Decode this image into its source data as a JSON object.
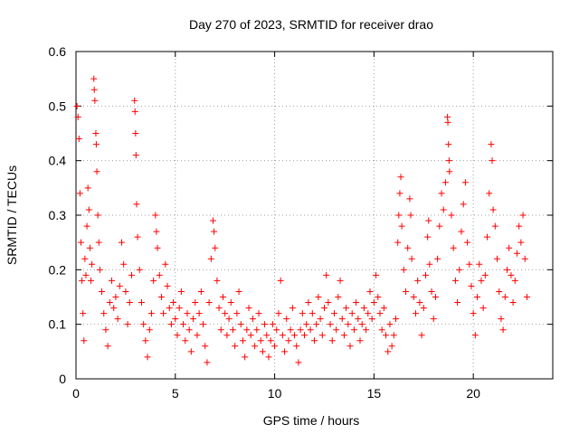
{
  "chart_data": {
    "type": "scatter",
    "title": "Day 270 of 2023, SRMTID for receiver drao",
    "xlabel": "GPS time / hours",
    "ylabel": "SRMTID / TECUs",
    "xlim": [
      0,
      24
    ],
    "ylim": [
      0,
      0.6
    ],
    "x_ticks": [
      0,
      5,
      10,
      15,
      20
    ],
    "y_ticks": [
      0,
      0.1,
      0.2,
      0.3,
      0.4,
      0.5,
      0.6
    ],
    "x_tick_labels": [
      "0",
      "5",
      "10",
      "15",
      "20"
    ],
    "y_tick_labels": [
      "0",
      "0.1",
      "0.2",
      "0.3",
      "0.4",
      "0.5",
      "0.6"
    ],
    "grid": true,
    "marker": "+",
    "marker_color": "#ff0000",
    "series": [
      {
        "name": "SRMTID",
        "points": [
          [
            0.05,
            0.5
          ],
          [
            0.1,
            0.48
          ],
          [
            0.15,
            0.44
          ],
          [
            0.2,
            0.34
          ],
          [
            0.25,
            0.25
          ],
          [
            0.3,
            0.18
          ],
          [
            0.35,
            0.12
          ],
          [
            0.4,
            0.07
          ],
          [
            0.45,
            0.22
          ],
          [
            0.5,
            0.19
          ],
          [
            0.55,
            0.28
          ],
          [
            0.6,
            0.35
          ],
          [
            0.65,
            0.31
          ],
          [
            0.7,
            0.24
          ],
          [
            0.75,
            0.18
          ],
          [
            0.8,
            0.21
          ],
          [
            0.9,
            0.55
          ],
          [
            0.92,
            0.53
          ],
          [
            0.95,
            0.51
          ],
          [
            1.0,
            0.45
          ],
          [
            1.02,
            0.43
          ],
          [
            1.05,
            0.38
          ],
          [
            1.1,
            0.3
          ],
          [
            1.15,
            0.25
          ],
          [
            1.2,
            0.2
          ],
          [
            1.3,
            0.16
          ],
          [
            1.4,
            0.12
          ],
          [
            1.5,
            0.09
          ],
          [
            1.6,
            0.06
          ],
          [
            1.7,
            0.14
          ],
          [
            1.8,
            0.18
          ],
          [
            1.9,
            0.13
          ],
          [
            2.0,
            0.15
          ],
          [
            2.1,
            0.11
          ],
          [
            2.2,
            0.17
          ],
          [
            2.3,
            0.25
          ],
          [
            2.4,
            0.21
          ],
          [
            2.5,
            0.16
          ],
          [
            2.6,
            0.1
          ],
          [
            2.7,
            0.14
          ],
          [
            2.8,
            0.19
          ],
          [
            2.95,
            0.51
          ],
          [
            2.97,
            0.49
          ],
          [
            3.0,
            0.45
          ],
          [
            3.02,
            0.41
          ],
          [
            3.05,
            0.32
          ],
          [
            3.1,
            0.26
          ],
          [
            3.2,
            0.2
          ],
          [
            3.3,
            0.14
          ],
          [
            3.4,
            0.1
          ],
          [
            3.5,
            0.07
          ],
          [
            3.6,
            0.04
          ],
          [
            3.7,
            0.09
          ],
          [
            3.8,
            0.12
          ],
          [
            3.9,
            0.18
          ],
          [
            4.0,
            0.3
          ],
          [
            4.05,
            0.27
          ],
          [
            4.1,
            0.24
          ],
          [
            4.2,
            0.19
          ],
          [
            4.3,
            0.15
          ],
          [
            4.4,
            0.12
          ],
          [
            4.5,
            0.21
          ],
          [
            4.6,
            0.17
          ],
          [
            4.7,
            0.13
          ],
          [
            4.8,
            0.1
          ],
          [
            4.9,
            0.14
          ],
          [
            5.0,
            0.11
          ],
          [
            5.1,
            0.08
          ],
          [
            5.2,
            0.13
          ],
          [
            5.3,
            0.16
          ],
          [
            5.4,
            0.1
          ],
          [
            5.5,
            0.07
          ],
          [
            5.6,
            0.12
          ],
          [
            5.7,
            0.09
          ],
          [
            5.8,
            0.05
          ],
          [
            5.9,
            0.11
          ],
          [
            6.0,
            0.14
          ],
          [
            6.1,
            0.08
          ],
          [
            6.2,
            0.12
          ],
          [
            6.3,
            0.16
          ],
          [
            6.4,
            0.1
          ],
          [
            6.5,
            0.06
          ],
          [
            6.6,
            0.03
          ],
          [
            6.7,
            0.14
          ],
          [
            6.8,
            0.22
          ],
          [
            6.9,
            0.29
          ],
          [
            6.95,
            0.27
          ],
          [
            7.0,
            0.24
          ],
          [
            7.1,
            0.18
          ],
          [
            7.2,
            0.13
          ],
          [
            7.3,
            0.09
          ],
          [
            7.4,
            0.15
          ],
          [
            7.5,
            0.12
          ],
          [
            7.6,
            0.08
          ],
          [
            7.7,
            0.11
          ],
          [
            7.8,
            0.14
          ],
          [
            7.9,
            0.09
          ],
          [
            8.0,
            0.06
          ],
          [
            8.1,
            0.12
          ],
          [
            8.2,
            0.16
          ],
          [
            8.3,
            0.1
          ],
          [
            8.4,
            0.07
          ],
          [
            8.5,
            0.04
          ],
          [
            8.6,
            0.09
          ],
          [
            8.7,
            0.13
          ],
          [
            8.8,
            0.08
          ],
          [
            8.9,
            0.11
          ],
          [
            9.0,
            0.06
          ],
          [
            9.1,
            0.09
          ],
          [
            9.2,
            0.12
          ],
          [
            9.3,
            0.07
          ],
          [
            9.4,
            0.05
          ],
          [
            9.5,
            0.1
          ],
          [
            9.6,
            0.08
          ],
          [
            9.7,
            0.04
          ],
          [
            9.8,
            0.07
          ],
          [
            9.9,
            0.1
          ],
          [
            10.0,
            0.06
          ],
          [
            10.1,
            0.09
          ],
          [
            10.2,
            0.12
          ],
          [
            10.3,
            0.18
          ],
          [
            10.4,
            0.08
          ],
          [
            10.5,
            0.05
          ],
          [
            10.6,
            0.11
          ],
          [
            10.7,
            0.07
          ],
          [
            10.8,
            0.09
          ],
          [
            10.9,
            0.13
          ],
          [
            11.0,
            0.08
          ],
          [
            11.1,
            0.06
          ],
          [
            11.2,
            0.03
          ],
          [
            11.3,
            0.09
          ],
          [
            11.4,
            0.12
          ],
          [
            11.5,
            0.08
          ],
          [
            11.6,
            0.1
          ],
          [
            11.7,
            0.14
          ],
          [
            11.8,
            0.09
          ],
          [
            11.9,
            0.12
          ],
          [
            12.0,
            0.07
          ],
          [
            12.1,
            0.1
          ],
          [
            12.2,
            0.15
          ],
          [
            12.3,
            0.11
          ],
          [
            12.4,
            0.08
          ],
          [
            12.5,
            0.13
          ],
          [
            12.6,
            0.19
          ],
          [
            12.7,
            0.14
          ],
          [
            12.8,
            0.1
          ],
          [
            12.9,
            0.07
          ],
          [
            13.0,
            0.12
          ],
          [
            13.1,
            0.09
          ],
          [
            13.2,
            0.15
          ],
          [
            13.3,
            0.18
          ],
          [
            13.4,
            0.11
          ],
          [
            13.5,
            0.08
          ],
          [
            13.6,
            0.13
          ],
          [
            13.7,
            0.1
          ],
          [
            13.8,
            0.06
          ],
          [
            13.9,
            0.12
          ],
          [
            14.0,
            0.09
          ],
          [
            14.1,
            0.14
          ],
          [
            14.2,
            0.11
          ],
          [
            14.3,
            0.07
          ],
          [
            14.4,
            0.1
          ],
          [
            14.5,
            0.13
          ],
          [
            14.6,
            0.09
          ],
          [
            14.7,
            0.12
          ],
          [
            14.8,
            0.16
          ],
          [
            14.9,
            0.11
          ],
          [
            15.0,
            0.14
          ],
          [
            15.1,
            0.19
          ],
          [
            15.2,
            0.15
          ],
          [
            15.3,
            0.12
          ],
          [
            15.4,
            0.09
          ],
          [
            15.5,
            0.13
          ],
          [
            15.6,
            0.08
          ],
          [
            15.7,
            0.05
          ],
          [
            15.8,
            0.1
          ],
          [
            15.9,
            0.06
          ],
          [
            16.0,
            0.08
          ],
          [
            16.1,
            0.11
          ],
          [
            16.2,
            0.25
          ],
          [
            16.25,
            0.3
          ],
          [
            16.3,
            0.34
          ],
          [
            16.35,
            0.37
          ],
          [
            16.4,
            0.28
          ],
          [
            16.5,
            0.2
          ],
          [
            16.6,
            0.16
          ],
          [
            16.7,
            0.24
          ],
          [
            16.8,
            0.33
          ],
          [
            16.85,
            0.3
          ],
          [
            16.9,
            0.22
          ],
          [
            17.0,
            0.15
          ],
          [
            17.1,
            0.12
          ],
          [
            17.2,
            0.18
          ],
          [
            17.3,
            0.14
          ],
          [
            17.4,
            0.08
          ],
          [
            17.5,
            0.13
          ],
          [
            17.6,
            0.19
          ],
          [
            17.7,
            0.26
          ],
          [
            17.75,
            0.29
          ],
          [
            17.8,
            0.21
          ],
          [
            17.9,
            0.16
          ],
          [
            18.0,
            0.11
          ],
          [
            18.1,
            0.15
          ],
          [
            18.2,
            0.22
          ],
          [
            18.3,
            0.28
          ],
          [
            18.4,
            0.34
          ],
          [
            18.5,
            0.31
          ],
          [
            18.6,
            0.36
          ],
          [
            18.7,
            0.48
          ],
          [
            18.72,
            0.47
          ],
          [
            18.75,
            0.43
          ],
          [
            18.78,
            0.4
          ],
          [
            18.8,
            0.38
          ],
          [
            18.9,
            0.3
          ],
          [
            19.0,
            0.24
          ],
          [
            19.1,
            0.18
          ],
          [
            19.2,
            0.14
          ],
          [
            19.3,
            0.2
          ],
          [
            19.4,
            0.27
          ],
          [
            19.5,
            0.32
          ],
          [
            19.6,
            0.36
          ],
          [
            19.7,
            0.25
          ],
          [
            19.8,
            0.21
          ],
          [
            19.9,
            0.17
          ],
          [
            20.0,
            0.12
          ],
          [
            20.1,
            0.08
          ],
          [
            20.2,
            0.15
          ],
          [
            20.3,
            0.21
          ],
          [
            20.4,
            0.18
          ],
          [
            20.5,
            0.13
          ],
          [
            20.6,
            0.19
          ],
          [
            20.7,
            0.26
          ],
          [
            20.8,
            0.34
          ],
          [
            20.9,
            0.43
          ],
          [
            20.95,
            0.4
          ],
          [
            21.0,
            0.31
          ],
          [
            21.1,
            0.28
          ],
          [
            21.2,
            0.22
          ],
          [
            21.3,
            0.16
          ],
          [
            21.4,
            0.11
          ],
          [
            21.5,
            0.09
          ],
          [
            21.6,
            0.15
          ],
          [
            21.7,
            0.2
          ],
          [
            21.8,
            0.24
          ],
          [
            21.9,
            0.19
          ],
          [
            22.0,
            0.14
          ],
          [
            22.1,
            0.18
          ],
          [
            22.2,
            0.23
          ],
          [
            22.3,
            0.28
          ],
          [
            22.4,
            0.25
          ],
          [
            22.5,
            0.3
          ],
          [
            22.6,
            0.22
          ],
          [
            22.7,
            0.15
          ]
        ]
      }
    ]
  }
}
